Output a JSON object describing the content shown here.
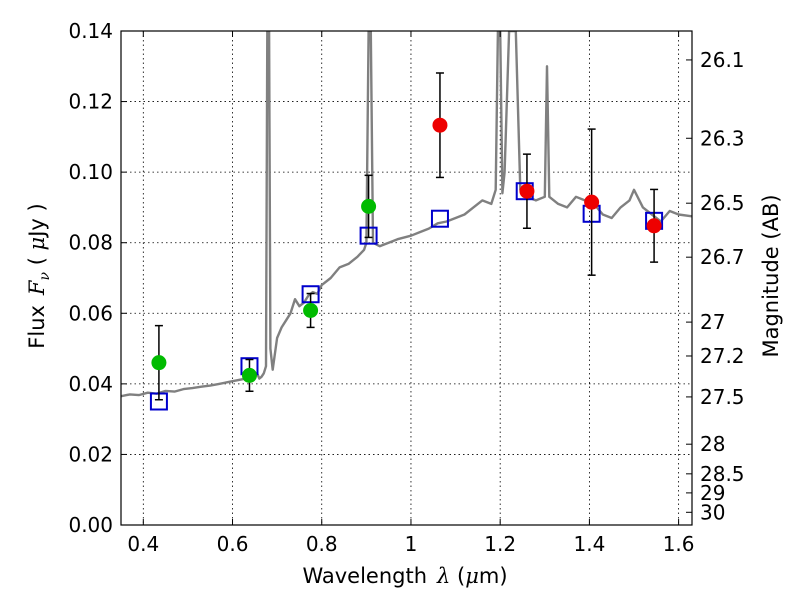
{
  "chart_data": {
    "type": "scatter",
    "xlabel_text": "Wavelength",
    "xlabel_symbol": "λ",
    "xlabel_unit_open": " (",
    "xlabel_unit_mu": "μ",
    "xlabel_unit_close": "m)",
    "ylabel_text": "Flux",
    "ylabel_symbol": "F",
    "ylabel_sub": "ν",
    "ylabel_unit_open": " ( ",
    "ylabel_unit_mu": "μ",
    "ylabel_unit_close": "Jy )",
    "y2label": "Magnitude (AB)",
    "xlim": [
      0.35,
      1.63
    ],
    "ylim": [
      0.0,
      0.14
    ],
    "grid": true,
    "x_ticks": [
      0.4,
      0.6,
      0.8,
      1.0,
      1.2,
      1.4,
      1.6
    ],
    "x_tick_labels": [
      "0.4",
      "0.6",
      "0.8",
      "1",
      "1.2",
      "1.4",
      "1.6"
    ],
    "y_ticks": [
      0.0,
      0.02,
      0.04,
      0.06,
      0.08,
      0.1,
      0.12,
      0.14
    ],
    "y_tick_labels": [
      "0.00",
      "0.02",
      "0.04",
      "0.06",
      "0.08",
      "0.10",
      "0.12",
      "0.14"
    ],
    "y2_ticks": [
      {
        "label": "26.1",
        "flux": 0.1318
      },
      {
        "label": "26.3",
        "flux": 0.1096
      },
      {
        "label": "26.5",
        "flux": 0.0912
      },
      {
        "label": "26.7",
        "flux": 0.0759
      },
      {
        "label": "27",
        "flux": 0.0575
      },
      {
        "label": "27.2",
        "flux": 0.0479
      },
      {
        "label": "27.5",
        "flux": 0.0363
      },
      {
        "label": "28",
        "flux": 0.0229
      },
      {
        "label": "28.5",
        "flux": 0.0145
      },
      {
        "label": "29",
        "flux": 0.0091
      },
      {
        "label": "30",
        "flux": 0.0036
      }
    ],
    "series": [
      {
        "marker": "circle",
        "color": "#00bb00",
        "points": [
          {
            "x": 0.435,
            "y": 0.046,
            "err": 0.0105
          },
          {
            "x": 0.638,
            "y": 0.0424,
            "err": 0.0045
          },
          {
            "x": 0.775,
            "y": 0.0608,
            "err": 0.0048
          },
          {
            "x": 0.905,
            "y": 0.0903,
            "err": 0.0088
          }
        ]
      },
      {
        "marker": "circle",
        "color": "#ee0000",
        "points": [
          {
            "x": 1.065,
            "y": 0.1133,
            "err": 0.0148
          },
          {
            "x": 1.26,
            "y": 0.0946,
            "err": 0.0105
          },
          {
            "x": 1.405,
            "y": 0.0915,
            "err": 0.0207
          },
          {
            "x": 1.545,
            "y": 0.0848,
            "err": 0.0103
          }
        ]
      },
      {
        "marker": "square",
        "color": "#0000cc",
        "points": [
          {
            "x": 0.435,
            "y": 0.035
          },
          {
            "x": 0.638,
            "y": 0.045
          },
          {
            "x": 0.775,
            "y": 0.0654
          },
          {
            "x": 0.905,
            "y": 0.082
          },
          {
            "x": 1.065,
            "y": 0.0868
          },
          {
            "x": 1.255,
            "y": 0.0946
          },
          {
            "x": 1.405,
            "y": 0.0882
          },
          {
            "x": 1.545,
            "y": 0.0862
          }
        ]
      },
      {
        "marker": "line",
        "color": "#808080",
        "points": [
          [
            0.35,
            0.0365
          ],
          [
            0.37,
            0.037
          ],
          [
            0.39,
            0.0368
          ],
          [
            0.41,
            0.0375
          ],
          [
            0.43,
            0.0372
          ],
          [
            0.45,
            0.038
          ],
          [
            0.47,
            0.0378
          ],
          [
            0.49,
            0.0385
          ],
          [
            0.51,
            0.0388
          ],
          [
            0.53,
            0.0392
          ],
          [
            0.55,
            0.0395
          ],
          [
            0.57,
            0.04
          ],
          [
            0.59,
            0.0405
          ],
          [
            0.61,
            0.041
          ],
          [
            0.63,
            0.0415
          ],
          [
            0.65,
            0.0418
          ],
          [
            0.655,
            0.043
          ],
          [
            0.66,
            0.0415
          ],
          [
            0.665,
            0.042
          ],
          [
            0.67,
            0.043
          ],
          [
            0.675,
            0.045
          ],
          [
            0.678,
            0.14
          ],
          [
            0.682,
            0.14
          ],
          [
            0.685,
            0.05
          ],
          [
            0.69,
            0.044
          ],
          [
            0.7,
            0.053
          ],
          [
            0.71,
            0.056
          ],
          [
            0.72,
            0.058
          ],
          [
            0.73,
            0.06
          ],
          [
            0.74,
            0.064
          ],
          [
            0.75,
            0.062
          ],
          [
            0.76,
            0.063
          ],
          [
            0.77,
            0.065
          ],
          [
            0.78,
            0.066
          ],
          [
            0.79,
            0.0655
          ],
          [
            0.8,
            0.068
          ],
          [
            0.82,
            0.07
          ],
          [
            0.84,
            0.073
          ],
          [
            0.86,
            0.074
          ],
          [
            0.88,
            0.076
          ],
          [
            0.895,
            0.078
          ],
          [
            0.9,
            0.08
          ],
          [
            0.905,
            0.14
          ],
          [
            0.91,
            0.14
          ],
          [
            0.915,
            0.08
          ],
          [
            0.93,
            0.079
          ],
          [
            0.95,
            0.08
          ],
          [
            0.97,
            0.081
          ],
          [
            1.0,
            0.082
          ],
          [
            1.02,
            0.083
          ],
          [
            1.04,
            0.084
          ],
          [
            1.06,
            0.0855
          ],
          [
            1.08,
            0.086
          ],
          [
            1.1,
            0.087
          ],
          [
            1.12,
            0.088
          ],
          [
            1.14,
            0.09
          ],
          [
            1.16,
            0.092
          ],
          [
            1.18,
            0.091
          ],
          [
            1.19,
            0.095
          ],
          [
            1.195,
            0.14
          ],
          [
            1.2,
            0.14
          ],
          [
            1.205,
            0.094
          ],
          [
            1.21,
            0.1
          ],
          [
            1.22,
            0.14
          ],
          [
            1.235,
            0.14
          ],
          [
            1.245,
            0.095
          ],
          [
            1.26,
            0.093
          ],
          [
            1.28,
            0.092
          ],
          [
            1.3,
            0.093
          ],
          [
            1.305,
            0.13
          ],
          [
            1.31,
            0.093
          ],
          [
            1.33,
            0.091
          ],
          [
            1.35,
            0.09
          ],
          [
            1.37,
            0.093
          ],
          [
            1.39,
            0.092
          ],
          [
            1.41,
            0.091
          ],
          [
            1.43,
            0.088
          ],
          [
            1.45,
            0.087
          ],
          [
            1.47,
            0.09
          ],
          [
            1.49,
            0.092
          ],
          [
            1.5,
            0.095
          ],
          [
            1.52,
            0.09
          ],
          [
            1.54,
            0.088
          ],
          [
            1.56,
            0.086
          ],
          [
            1.58,
            0.089
          ],
          [
            1.6,
            0.088
          ],
          [
            1.63,
            0.0875
          ]
        ]
      }
    ]
  }
}
